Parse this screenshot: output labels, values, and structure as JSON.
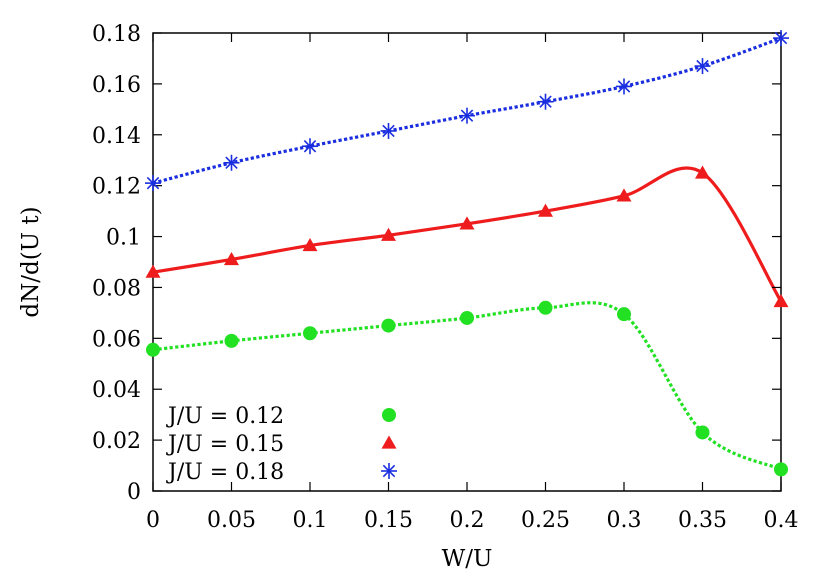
{
  "chart_data": {
    "type": "scatter",
    "title": "",
    "xlabel": "W/U",
    "ylabel": "dN/d(U t)",
    "xlim": [
      0,
      0.4
    ],
    "ylim": [
      0,
      0.18
    ],
    "xticks": [
      0,
      0.05,
      0.1,
      0.15,
      0.2,
      0.25,
      0.3,
      0.35,
      0.4
    ],
    "xtick_labels": [
      "0",
      "0.05",
      "0.1",
      "0.15",
      "0.2",
      "0.25",
      "0.3",
      "0.35",
      "0.4"
    ],
    "yticks": [
      0,
      0.02,
      0.04,
      0.06,
      0.08,
      0.1,
      0.12,
      0.14,
      0.16,
      0.18
    ],
    "ytick_labels": [
      "0",
      "0.02",
      "0.04",
      "0.06",
      "0.08",
      "0.1",
      "0.12",
      "0.14",
      "0.16",
      "0.18"
    ],
    "grid": false,
    "legend_position": "bottom-left",
    "x": [
      0,
      0.05,
      0.1,
      0.15,
      0.2,
      0.25,
      0.3,
      0.35,
      0.4
    ],
    "series": [
      {
        "name": "J/U = 0.12",
        "marker": "circle",
        "line_style": "dotted",
        "color": "#22e022",
        "values": [
          0.0555,
          0.059,
          0.062,
          0.065,
          0.068,
          0.072,
          0.0695,
          0.023,
          0.0085
        ]
      },
      {
        "name": "J/U = 0.15",
        "marker": "triangle",
        "line_style": "solid",
        "color": "#ee1c1c",
        "values": [
          0.086,
          0.091,
          0.0965,
          0.1005,
          0.105,
          0.11,
          0.116,
          0.125,
          0.0745
        ]
      },
      {
        "name": "J/U = 0.18",
        "marker": "asterisk",
        "line_style": "dotted",
        "color": "#1a2ee0",
        "values": [
          0.121,
          0.129,
          0.1355,
          0.1415,
          0.1475,
          0.153,
          0.159,
          0.167,
          0.178
        ]
      }
    ]
  }
}
